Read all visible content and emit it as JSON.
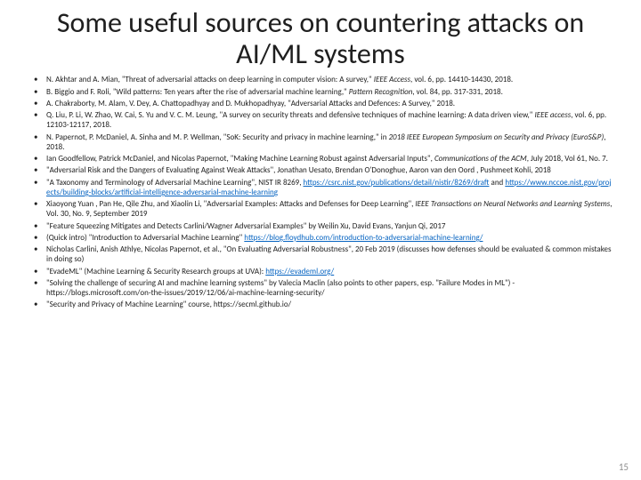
{
  "title": "Some useful sources on countering attacks on AI/ML systems",
  "page_number": "15",
  "colors": {
    "link": "#0563c1",
    "text": "#222222",
    "pagenum": "#8f8f8f",
    "bg": "#ffffff"
  },
  "fontsizes": {
    "title": 32,
    "bullet": 9,
    "pagenum": 11
  },
  "refs": [
    {
      "pre": "N. Akhtar and A. Mian, \"Threat of adversarial attacks on deep learning in computer vision: A survey,\" ",
      "ital": "IEEE Access",
      "post": ", vol. 6, pp. 14410-14430, 2018."
    },
    {
      "pre": "B. Biggio and F. Roli, \"Wild patterns: Ten years after the rise of adversarial machine learning,\" ",
      "ital": "Pattern Recognition",
      "post": ", vol. 84, pp. 317-331, 2018."
    },
    {
      "pre": "A. Chakraborty, M. Alam, V. Dey, A. Chattopadhyay and D. Mukhopadhyay, \"Adversarial Attacks and Defences: A Survey,\" 2018.",
      "ital": "",
      "post": ""
    },
    {
      "pre": "Q. Liu, P. Li, W. Zhao, W. Cai, S. Yu and V. C. M. Leung, \"A survey on security threats and defensive techniques of machine learning: A data driven view,\" ",
      "ital": "IEEE access",
      "post": ", vol. 6, pp. 12103-12117, 2018."
    },
    {
      "pre": "N. Papernot, P. McDaniel, A. Sinha and M. P. Wellman, \"SoK: Security and privacy in machine learning,\" in ",
      "ital": "2018 IEEE European Symposium on Security and Privacy (EuroS&P)",
      "post": ", 2018."
    },
    {
      "pre": "Ian Goodfellow, Patrick McDaniel, and Nicolas Papernot, \"Making Machine Learning Robust against Adversarial Inputs\", ",
      "ital": "Communications of the ACM",
      "post": ", July 2018, Vol 61, No. 7."
    },
    {
      "pre": "\"Adversarial Risk and the Dangers of Evaluating Against Weak Attacks\", Jonathan Uesato, Brendan O'Donoghue, Aaron van den Oord , Pushmeet Kohli, 2018",
      "ital": "",
      "post": ""
    },
    {
      "pre": "\"A Taxonomy and Terminology of Adversarial Machine Learning\", NIST IR 8269, ",
      "link1": "https://csrc.nist.gov/publications/detail/nistir/8269/draft",
      "mid": " and ",
      "link2": "https://www.nccoe.nist.gov/projects/building-blocks/artificial-intelligence-adversarial-machine-learning"
    },
    {
      "pre": "Xiaoyong Yuan , Pan He, Qile Zhu, and Xiaolin Li, \"Adversarial Examples: Attacks and Defenses for Deep Learning\", ",
      "ital": "IEEE Transactions on Neural Networks and Learning Systems",
      "post": ", Vol. 30, No. 9, September 2019"
    },
    {
      "pre": "\"Feature Squeezing Mitigates and Detects Carlini/Wagner Adversarial Examples\" by Weilin Xu, David Evans, Yanjun Qi, 2017",
      "ital": "",
      "post": ""
    },
    {
      "pre": "(Quick intro) \"Introduction to Adversarial Machine Learning\" ",
      "link1": "https://blog.floydhub.com/introduction-to-adversarial-machine-learning/"
    },
    {
      "pre": "Nicholas Carlini, Anish Athlye, Nicolas Papernot, et al., \"On Evaluating Adversarial Robustness\", 20 Feb 2019 (discusses how defenses should be evaluated & common mistakes in doing so)",
      "ital": "",
      "post": ""
    },
    {
      "pre": "\"EvadeML\" (Machine Learning & Security Research groups at UVA): ",
      "link1": "https://evademl.org/"
    },
    {
      "pre": "\"Solving the challenge of securing AI and machine learning systems\" by Valecia Maclin (also points to other papers, esp. \"Failure Modes in ML\") - https://blogs.microsoft.com/on-the-issues/2019/12/06/ai-machine-learning-security/",
      "ital": "",
      "post": ""
    },
    {
      "pre": "\"Security and Privacy of Machine Learning\" course, https://secml.github.io/",
      "ital": "",
      "post": ""
    }
  ]
}
